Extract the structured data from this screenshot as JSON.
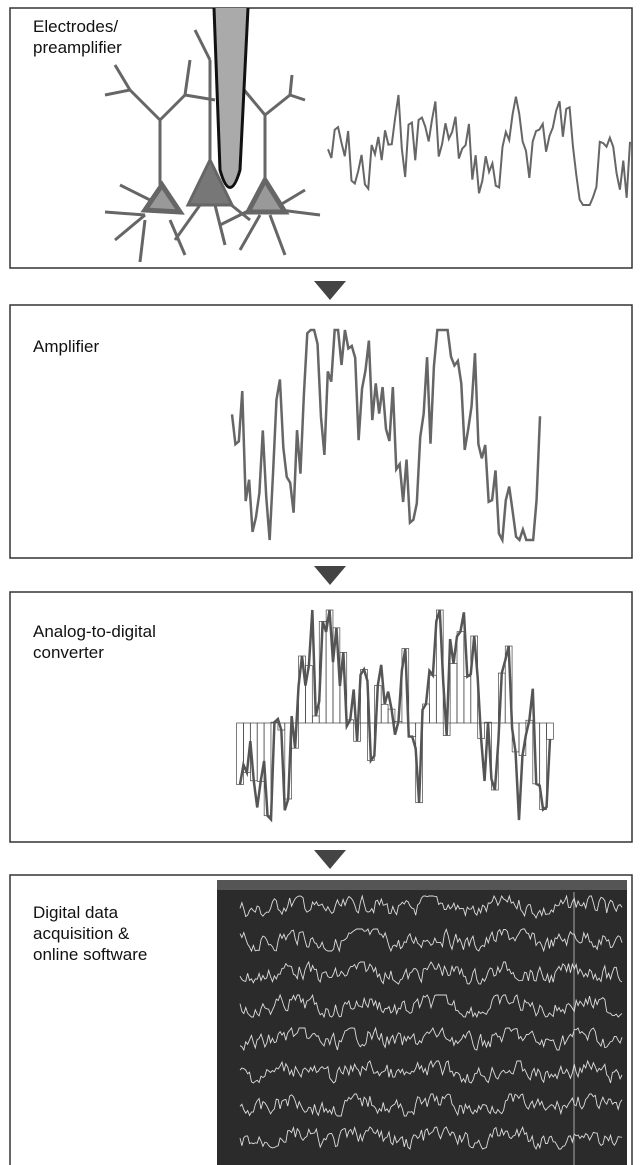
{
  "panels": [
    {
      "label_lines": [
        "Electrodes/",
        "preamplifier"
      ]
    },
    {
      "label_lines": [
        "Amplifier"
      ]
    },
    {
      "label_lines": [
        "Analog-to-digital",
        "converter"
      ]
    },
    {
      "label_lines": [
        "Digital data",
        "acquisition &",
        "online software"
      ]
    }
  ]
}
